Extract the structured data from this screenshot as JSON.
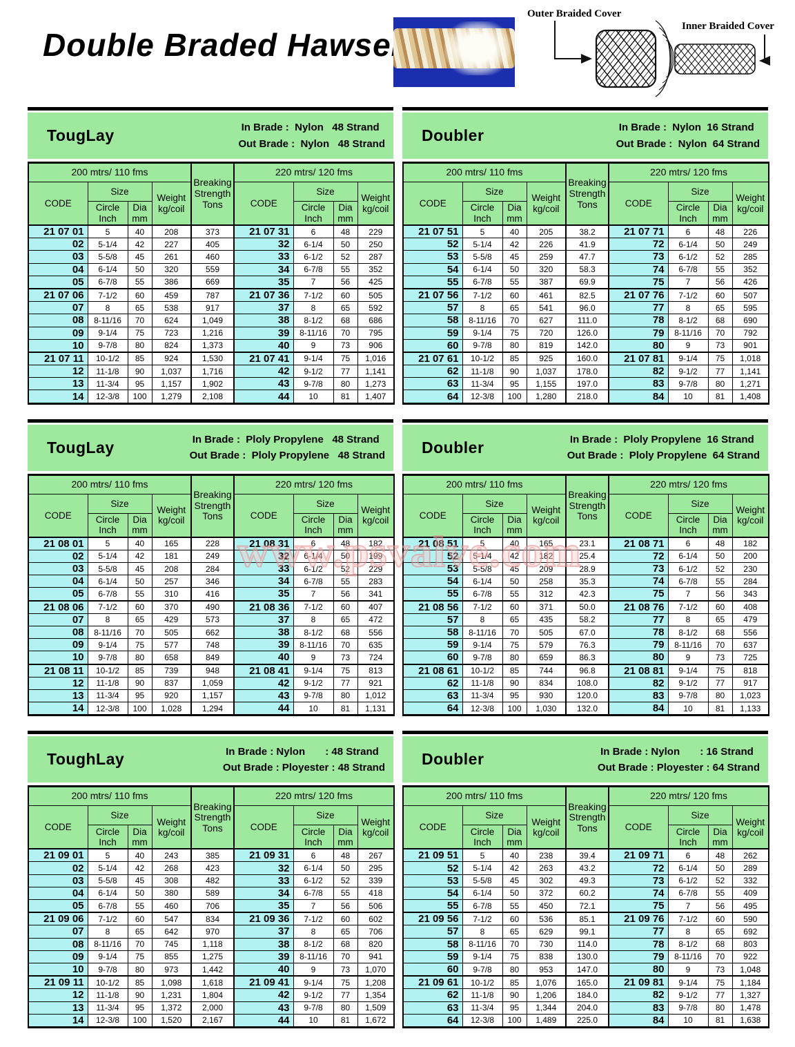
{
  "page": {
    "title": "Double Braded Hawser",
    "watermark": "www.psvalve.com"
  },
  "diagram": {
    "outer_label": "Outer Braided Cover",
    "inner_label": "Inner Braided Cover"
  },
  "colors": {
    "header_green": "#9fe99f",
    "code_cyan": "#b3f2f2",
    "photo_blue": "#1b2fae",
    "watermark_pink": "#e48c8c"
  },
  "columns": {
    "left_span": "200 mtrs/ 110 fms",
    "right_span": "220 mtrs/ 120 fms",
    "code": "CODE",
    "size": "Size",
    "circle": [
      "Circle",
      "Inch"
    ],
    "dia": [
      "Dia",
      "mm"
    ],
    "weight": [
      "Weight",
      "kg/coil"
    ],
    "breaking": [
      "Breaking",
      "Strength",
      "Tons"
    ]
  },
  "tables": [
    {
      "title": "TougLay",
      "in_line": " In Brade :  Nylon   48 Strand",
      "out_line": "Out Brade :  Nylon   48 Strand",
      "rows": [
        [
          "21 07 01",
          "5",
          "40",
          "208",
          "373",
          "21 07 31",
          "6",
          "48",
          "229"
        ],
        [
          "02",
          "5-1/4",
          "42",
          "227",
          "405",
          "32",
          "6-1/4",
          "50",
          "250"
        ],
        [
          "03",
          "5-5/8",
          "45",
          "261",
          "460",
          "33",
          "6-1/2",
          "52",
          "287"
        ],
        [
          "04",
          "6-1/4",
          "50",
          "320",
          "559",
          "34",
          "6-7/8",
          "55",
          "352"
        ],
        [
          "05",
          "6-7/8",
          "55",
          "386",
          "669",
          "35",
          "7",
          "56",
          "425"
        ],
        [
          "21 07 06",
          "7-1/2",
          "60",
          "459",
          "787",
          "21 07 36",
          "7-1/2",
          "60",
          "505"
        ],
        [
          "07",
          "8",
          "65",
          "538",
          "917",
          "37",
          "8",
          "65",
          "592"
        ],
        [
          "08",
          "8-11/16",
          "70",
          "624",
          "1,049",
          "38",
          "8-1/2",
          "68",
          "686"
        ],
        [
          "09",
          "9-1/4",
          "75",
          "723",
          "1,216",
          "39",
          "8-11/16",
          "70",
          "795"
        ],
        [
          "10",
          "9-7/8",
          "80",
          "824",
          "1,373",
          "40",
          "9",
          "73",
          "906"
        ],
        [
          "21 07 11",
          "10-1/2",
          "85",
          "924",
          "1,530",
          "21 07 41",
          "9-1/4",
          "75",
          "1,016"
        ],
        [
          "12",
          "11-1/8",
          "90",
          "1,037",
          "1,716",
          "42",
          "9-1/2",
          "77",
          "1,141"
        ],
        [
          "13",
          "11-3/4",
          "95",
          "1,157",
          "1,902",
          "43",
          "9-7/8",
          "80",
          "1,273"
        ],
        [
          "14",
          "12-3/8",
          "100",
          "1,279",
          "2,108",
          "44",
          "10",
          "81",
          "1,407"
        ]
      ]
    },
    {
      "title": "Doubler",
      "in_line": " In Brade :  Nylon  16 Strand",
      "out_line": "Out Brade :  Nylon  64 Strand",
      "rows": [
        [
          "21 07 51",
          "5",
          "40",
          "205",
          "38.2",
          "21 07 71",
          "6",
          "48",
          "226"
        ],
        [
          "52",
          "5-1/4",
          "42",
          "226",
          "41.9",
          "72",
          "6-1/4",
          "50",
          "249"
        ],
        [
          "53",
          "5-5/8",
          "45",
          "259",
          "47.7",
          "73",
          "6-1/2",
          "52",
          "285"
        ],
        [
          "54",
          "6-1/4",
          "50",
          "320",
          "58.3",
          "74",
          "6-7/8",
          "55",
          "352"
        ],
        [
          "55",
          "6-7/8",
          "55",
          "387",
          "69.9",
          "75",
          "7",
          "56",
          "426"
        ],
        [
          "21 07 56",
          "7-1/2",
          "60",
          "461",
          "82.5",
          "21 07 76",
          "7-1/2",
          "60",
          "507"
        ],
        [
          "57",
          "8",
          "65",
          "541",
          "96.0",
          "77",
          "8",
          "65",
          "595"
        ],
        [
          "58",
          "8-11/16",
          "70",
          "627",
          "111.0",
          "78",
          "8-1/2",
          "68",
          "690"
        ],
        [
          "59",
          "9-1/4",
          "75",
          "720",
          "126.0",
          "79",
          "8-11/16",
          "70",
          "792"
        ],
        [
          "60",
          "9-7/8",
          "80",
          "819",
          "142.0",
          "80",
          "9",
          "73",
          "901"
        ],
        [
          "21 07 61",
          "10-1/2",
          "85",
          "925",
          "160.0",
          "21 07 81",
          "9-1/4",
          "75",
          "1,018"
        ],
        [
          "62",
          "11-1/8",
          "90",
          "1,037",
          "178.0",
          "82",
          "9-1/2",
          "77",
          "1,141"
        ],
        [
          "63",
          "11-3/4",
          "95",
          "1,155",
          "197.0",
          "83",
          "9-7/8",
          "80",
          "1,271"
        ],
        [
          "64",
          "12-3/8",
          "100",
          "1,280",
          "218.0",
          "84",
          "10",
          "81",
          "1,408"
        ]
      ]
    },
    {
      "title": "TougLay",
      "in_line": " In Brade :  Ploly Propylene   48 Strand",
      "out_line": "Out Brade :  Ploly Propylene   48 Strand",
      "rows": [
        [
          "21 08 01",
          "5",
          "40",
          "165",
          "228",
          "21 08 31",
          "6",
          "48",
          "182"
        ],
        [
          "02",
          "5-1/4",
          "42",
          "181",
          "249",
          "32",
          "6-1/4",
          "50",
          "199"
        ],
        [
          "03",
          "5-5/8",
          "45",
          "208",
          "284",
          "33",
          "6-1/2",
          "52",
          "229"
        ],
        [
          "04",
          "6-1/4",
          "50",
          "257",
          "346",
          "34",
          "6-7/8",
          "55",
          "283"
        ],
        [
          "05",
          "6-7/8",
          "55",
          "310",
          "416",
          "35",
          "7",
          "56",
          "341"
        ],
        [
          "21 08 06",
          "7-1/2",
          "60",
          "370",
          "490",
          "21 08 36",
          "7-1/2",
          "60",
          "407"
        ],
        [
          "07",
          "8",
          "65",
          "429",
          "573",
          "37",
          "8",
          "65",
          "472"
        ],
        [
          "08",
          "8-11/16",
          "70",
          "505",
          "662",
          "38",
          "8-1/2",
          "68",
          "556"
        ],
        [
          "09",
          "9-1/4",
          "75",
          "577",
          "748",
          "39",
          "8-11/16",
          "70",
          "635"
        ],
        [
          "10",
          "9-7/8",
          "80",
          "658",
          "849",
          "40",
          "9",
          "73",
          "724"
        ],
        [
          "21 08 11",
          "10-1/2",
          "85",
          "739",
          "948",
          "21 08 41",
          "9-1/4",
          "75",
          "813"
        ],
        [
          "12",
          "11-1/8",
          "90",
          "837",
          "1,059",
          "42",
          "9-1/2",
          "77",
          "921"
        ],
        [
          "13",
          "11-3/4",
          "95",
          "920",
          "1,157",
          "43",
          "9-7/8",
          "80",
          "1,012"
        ],
        [
          "14",
          "12-3/8",
          "100",
          "1,028",
          "1,294",
          "44",
          "10",
          "81",
          "1,131"
        ]
      ]
    },
    {
      "title": "Doubler",
      "in_line": " In Brade :  Ploly Propylene  16 Strand",
      "out_line": "Out Brade :  Ploly Propylene  64 Strand",
      "rows": [
        [
          "21 08 51",
          "5",
          "40",
          "165",
          "23.1",
          "21 08 71",
          "6",
          "48",
          "182"
        ],
        [
          "52",
          "5-1/4",
          "42",
          "182",
          "25.4",
          "72",
          "6-1/4",
          "50",
          "200"
        ],
        [
          "53",
          "5-5/8",
          "45",
          "209",
          "28.9",
          "73",
          "6-1/2",
          "52",
          "230"
        ],
        [
          "54",
          "6-1/4",
          "50",
          "258",
          "35.3",
          "74",
          "6-7/8",
          "55",
          "284"
        ],
        [
          "55",
          "6-7/8",
          "55",
          "312",
          "42.3",
          "75",
          "7",
          "56",
          "343"
        ],
        [
          "21 08 56",
          "7-1/2",
          "60",
          "371",
          "50.0",
          "21 08 76",
          "7-1/2",
          "60",
          "408"
        ],
        [
          "57",
          "8",
          "65",
          "435",
          "58.2",
          "77",
          "8",
          "65",
          "479"
        ],
        [
          "58",
          "8-11/16",
          "70",
          "505",
          "67.0",
          "78",
          "8-1/2",
          "68",
          "556"
        ],
        [
          "59",
          "9-1/4",
          "75",
          "579",
          "76.3",
          "79",
          "8-11/16",
          "70",
          "637"
        ],
        [
          "60",
          "9-7/8",
          "80",
          "659",
          "86.3",
          "80",
          "9",
          "73",
          "725"
        ],
        [
          "21 08 61",
          "10-1/2",
          "85",
          "744",
          "96.8",
          "21 08 81",
          "9-1/4",
          "75",
          "818"
        ],
        [
          "62",
          "11-1/8",
          "90",
          "834",
          "108.0",
          "82",
          "9-1/2",
          "77",
          "917"
        ],
        [
          "63",
          "11-3/4",
          "95",
          "930",
          "120.0",
          "83",
          "9-7/8",
          "80",
          "1,023"
        ],
        [
          "64",
          "12-3/8",
          "100",
          "1,030",
          "132.0",
          "84",
          "10",
          "81",
          "1,133"
        ]
      ]
    },
    {
      "title": "ToughLay",
      "in_line": " In Brade : Nylon       : 48 Strand",
      "out_line": "Out Brade : Ployester : 48 Strand",
      "rows": [
        [
          "21 09 01",
          "5",
          "40",
          "243",
          "385",
          "21 09 31",
          "6",
          "48",
          "267"
        ],
        [
          "02",
          "5-1/4",
          "42",
          "268",
          "423",
          "32",
          "6-1/4",
          "50",
          "295"
        ],
        [
          "03",
          "5-5/8",
          "45",
          "308",
          "482",
          "33",
          "6-1/2",
          "52",
          "339"
        ],
        [
          "04",
          "6-1/4",
          "50",
          "380",
          "589",
          "34",
          "6-7/8",
          "55",
          "418"
        ],
        [
          "05",
          "6-7/8",
          "55",
          "460",
          "706",
          "35",
          "7",
          "56",
          "506"
        ],
        [
          "21 09 06",
          "7-1/2",
          "60",
          "547",
          "834",
          "21 09 36",
          "7-1/2",
          "60",
          "602"
        ],
        [
          "07",
          "8",
          "65",
          "642",
          "970",
          "37",
          "8",
          "65",
          "706"
        ],
        [
          "08",
          "8-11/16",
          "70",
          "745",
          "1,118",
          "38",
          "8-1/2",
          "68",
          "820"
        ],
        [
          "09",
          "9-1/4",
          "75",
          "855",
          "1,275",
          "39",
          "8-11/16",
          "70",
          "941"
        ],
        [
          "10",
          "9-7/8",
          "80",
          "973",
          "1,442",
          "40",
          "9",
          "73",
          "1,070"
        ],
        [
          "21 09 11",
          "10-1/2",
          "85",
          "1,098",
          "1,618",
          "21 09 41",
          "9-1/4",
          "75",
          "1,208"
        ],
        [
          "12",
          "11-1/8",
          "90",
          "1,231",
          "1,804",
          "42",
          "9-1/2",
          "77",
          "1,354"
        ],
        [
          "13",
          "11-3/4",
          "95",
          "1,372",
          "2,000",
          "43",
          "9-7/8",
          "80",
          "1,509"
        ],
        [
          "14",
          "12-3/8",
          "100",
          "1,520",
          "2,167",
          "44",
          "10",
          "81",
          "1,672"
        ]
      ]
    },
    {
      "title": "Doubler",
      "in_line": " In Brade : Nylon       : 16 Strand",
      "out_line": "Out Brade : Ployester : 64 Strand",
      "rows": [
        [
          "21 09 51",
          "5",
          "40",
          "238",
          "39.4",
          "21 09 71",
          "6",
          "48",
          "262"
        ],
        [
          "52",
          "5-1/4",
          "42",
          "263",
          "43.2",
          "72",
          "6-1/4",
          "50",
          "289"
        ],
        [
          "53",
          "5-5/8",
          "45",
          "302",
          "49.3",
          "73",
          "6-1/2",
          "52",
          "332"
        ],
        [
          "54",
          "6-1/4",
          "50",
          "372",
          "60.2",
          "74",
          "6-7/8",
          "55",
          "409"
        ],
        [
          "55",
          "6-7/8",
          "55",
          "450",
          "72.1",
          "75",
          "7",
          "56",
          "495"
        ],
        [
          "21 09 56",
          "7-1/2",
          "60",
          "536",
          "85.1",
          "21 09 76",
          "7-1/2",
          "60",
          "590"
        ],
        [
          "57",
          "8",
          "65",
          "629",
          "99.1",
          "77",
          "8",
          "65",
          "692"
        ],
        [
          "58",
          "8-11/16",
          "70",
          "730",
          "114.0",
          "78",
          "8-1/2",
          "68",
          "803"
        ],
        [
          "59",
          "9-1/4",
          "75",
          "838",
          "130.0",
          "79",
          "8-11/16",
          "70",
          "922"
        ],
        [
          "60",
          "9-7/8",
          "80",
          "953",
          "147.0",
          "80",
          "9",
          "73",
          "1,048"
        ],
        [
          "21 09 61",
          "10-1/2",
          "85",
          "1,076",
          "165.0",
          "21 09 81",
          "9-1/4",
          "75",
          "1,184"
        ],
        [
          "62",
          "11-1/8",
          "90",
          "1,206",
          "184.0",
          "82",
          "9-1/2",
          "77",
          "1,327"
        ],
        [
          "63",
          "11-3/4",
          "95",
          "1,344",
          "204.0",
          "83",
          "9-7/8",
          "80",
          "1,478"
        ],
        [
          "64",
          "12-3/8",
          "100",
          "1,489",
          "225.0",
          "84",
          "10",
          "81",
          "1,638"
        ]
      ]
    }
  ]
}
